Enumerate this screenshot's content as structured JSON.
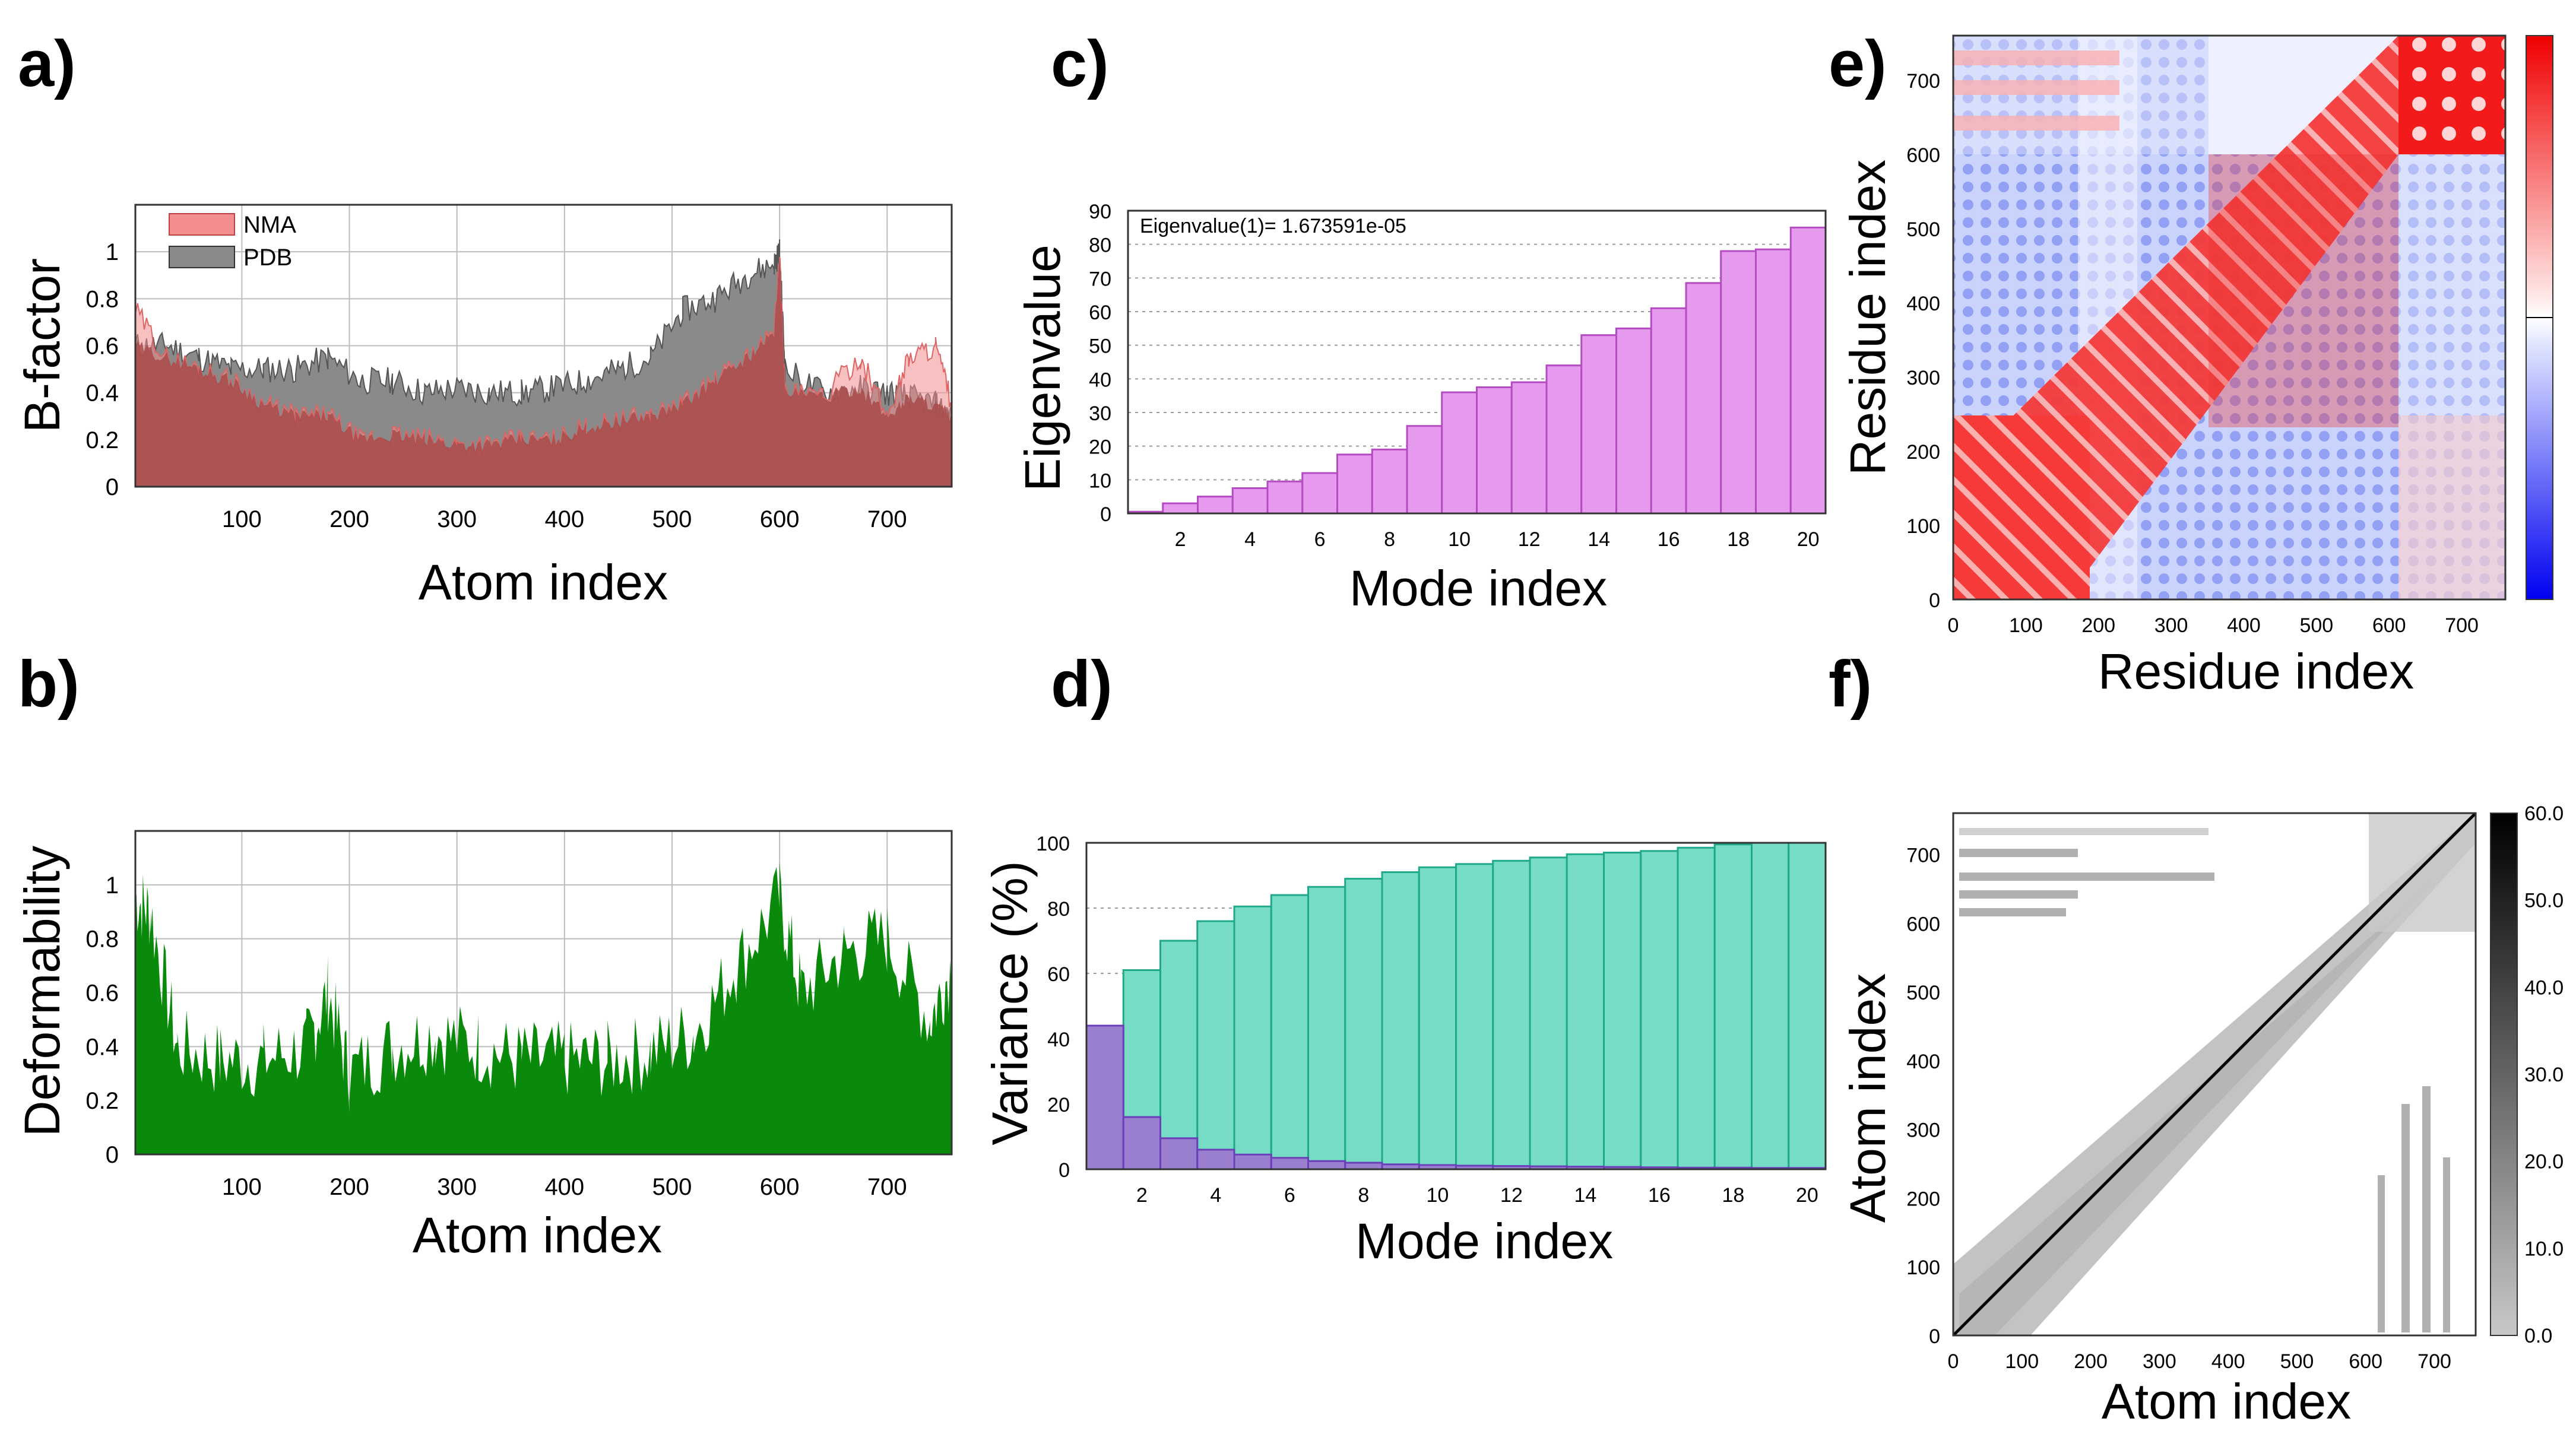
{
  "panels": {
    "a": "a)",
    "b": "b)",
    "c": "c)",
    "d": "d)",
    "e": "e)",
    "f": "f)"
  },
  "chart_data": [
    {
      "id": "a",
      "type": "area",
      "xlabel": "Atom index",
      "ylabel": "B-factor",
      "xlim": [
        1,
        760
      ],
      "ylim": [
        0,
        1.2
      ],
      "xticks": [
        100,
        200,
        300,
        400,
        500,
        600,
        700
      ],
      "yticks": [
        0,
        0.2,
        0.4,
        0.6,
        0.8,
        1
      ],
      "legend": "top-left",
      "grid": true,
      "colors": {
        "NMA": "#f28e8e",
        "PDB": "#8a8a8a",
        "overlap": "#a84a4a"
      },
      "series": [
        {
          "name": "NMA",
          "x": [
            1,
            30,
            60,
            90,
            120,
            150,
            180,
            210,
            240,
            270,
            300,
            330,
            360,
            390,
            420,
            450,
            480,
            510,
            540,
            570,
            595,
            600,
            605,
            640,
            675,
            700,
            720,
            745,
            760
          ],
          "y": [
            0.75,
            0.55,
            0.5,
            0.45,
            0.35,
            0.3,
            0.3,
            0.2,
            0.22,
            0.2,
            0.18,
            0.18,
            0.2,
            0.2,
            0.25,
            0.28,
            0.3,
            0.35,
            0.45,
            0.55,
            0.65,
            0.98,
            0.4,
            0.38,
            0.55,
            0.3,
            0.55,
            0.6,
            0.35
          ]
        },
        {
          "name": "PDB",
          "x": [
            1,
            30,
            60,
            90,
            120,
            150,
            180,
            210,
            240,
            270,
            300,
            330,
            360,
            390,
            420,
            450,
            480,
            510,
            540,
            570,
            595,
            600,
            605,
            640,
            675,
            700,
            720,
            745,
            760
          ],
          "y": [
            0.6,
            0.6,
            0.55,
            0.5,
            0.5,
            0.5,
            0.55,
            0.45,
            0.45,
            0.4,
            0.42,
            0.4,
            0.4,
            0.42,
            0.45,
            0.5,
            0.55,
            0.75,
            0.8,
            0.9,
            0.95,
            1.0,
            0.5,
            0.4,
            0.42,
            0.4,
            0.38,
            0.35,
            0.3
          ]
        }
      ]
    },
    {
      "id": "b",
      "type": "area",
      "xlabel": "Atom index",
      "ylabel": "Deformability",
      "xlim": [
        1,
        760
      ],
      "ylim": [
        0,
        1.2
      ],
      "xticks": [
        100,
        200,
        300,
        400,
        500,
        600,
        700
      ],
      "yticks": [
        0,
        0.2,
        0.4,
        0.6,
        0.8,
        1
      ],
      "grid": true,
      "colors": {
        "fill": "#0a8a0a"
      },
      "series": [
        {
          "x": [
            1,
            15,
            40,
            80,
            120,
            160,
            180,
            200,
            240,
            280,
            320,
            360,
            400,
            440,
            480,
            520,
            560,
            600,
            620,
            660,
            700,
            740,
            760
          ],
          "y": [
            0.95,
            0.9,
            0.4,
            0.35,
            0.35,
            0.4,
            0.6,
            0.3,
            0.4,
            0.45,
            0.4,
            0.35,
            0.35,
            0.35,
            0.38,
            0.45,
            0.7,
            0.95,
            0.6,
            0.75,
            0.8,
            0.5,
            0.7
          ]
        }
      ]
    },
    {
      "id": "c",
      "type": "bar",
      "xlabel": "Mode index",
      "ylabel": "Eigenvalue",
      "annotation": "Eigenvalue(1)= 1.673591e-05",
      "categories": [
        1,
        2,
        3,
        4,
        5,
        6,
        7,
        8,
        9,
        10,
        11,
        12,
        13,
        14,
        15,
        16,
        17,
        18,
        19,
        20
      ],
      "values": [
        0.5,
        3,
        5,
        7.5,
        9.5,
        12,
        17.5,
        19,
        26,
        36,
        37.5,
        39,
        44,
        53,
        55,
        61,
        68.5,
        78,
        78.5,
        85
      ],
      "xticks": [
        2,
        4,
        6,
        8,
        10,
        12,
        14,
        16,
        18,
        20
      ],
      "yticks": [
        0,
        10,
        20,
        30,
        40,
        50,
        60,
        70,
        80,
        90
      ],
      "ylim": [
        0,
        90
      ],
      "colors": {
        "fill": "#e69aee",
        "edge": "#b44bc2"
      }
    },
    {
      "id": "d",
      "type": "bar",
      "xlabel": "Mode index",
      "ylabel": "Variance (%)",
      "categories": [
        1,
        2,
        3,
        4,
        5,
        6,
        7,
        8,
        9,
        10,
        11,
        12,
        13,
        14,
        15,
        16,
        17,
        18,
        19,
        20
      ],
      "xticks": [
        2,
        4,
        6,
        8,
        10,
        12,
        14,
        16,
        18,
        20
      ],
      "yticks": [
        0,
        20,
        40,
        60,
        80,
        100
      ],
      "ylim": [
        0,
        100
      ],
      "colors": {
        "cumulative": "#76dcc6",
        "cumulative_edge": "#1fa98a",
        "individual": "#9a7fd1",
        "individual_edge": "#6b3fb8"
      },
      "series": [
        {
          "values": [
            44,
            61,
            70,
            76,
            80.5,
            84,
            86.5,
            89,
            91,
            92.5,
            93.5,
            94.5,
            95.5,
            96.5,
            97,
            97.5,
            98.5,
            99.5,
            100,
            100
          ]
        },
        {
          "values": [
            44,
            16,
            9.5,
            6,
            4.5,
            3.5,
            2.5,
            2,
            1.5,
            1.3,
            1.1,
            1,
            0.9,
            0.8,
            0.7,
            0.6,
            0.5,
            0.5,
            0.4,
            0.4
          ]
        }
      ]
    },
    {
      "id": "e",
      "type": "heatmap",
      "xlabel": "Residue index",
      "ylabel": "Residue index",
      "xlim": [
        0,
        760
      ],
      "ylim": [
        0,
        760
      ],
      "xticks": [
        0,
        100,
        200,
        300,
        400,
        500,
        600,
        700
      ],
      "yticks": [
        0,
        100,
        200,
        300,
        400,
        500,
        600,
        700
      ],
      "colors": {
        "positive": "#ee1c1c",
        "negative": "#1e3cf0",
        "zero": "#ffffff"
      }
    },
    {
      "id": "f",
      "type": "heatmap",
      "xlabel": "Atom index",
      "ylabel": "Atom index",
      "xlim": [
        0,
        760
      ],
      "ylim": [
        0,
        760
      ],
      "xticks": [
        0,
        100,
        200,
        300,
        400,
        500,
        600,
        700
      ],
      "yticks": [
        0,
        100,
        200,
        300,
        400,
        500,
        600,
        700
      ],
      "colorbar_ticks": [
        "0.0",
        "10.0",
        "20.0",
        "30.0",
        "40.0",
        "50.0",
        "60.0"
      ],
      "colors": {
        "cells": "#b9b9b9",
        "diagonal": "#000000"
      }
    }
  ]
}
